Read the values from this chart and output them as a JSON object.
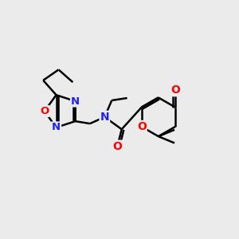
{
  "bg_color": "#ebebeb",
  "atom_colors": {
    "N": "#2020ff",
    "O": "#ff0000",
    "C": "#000000"
  },
  "bond_color": "#000000",
  "bond_width": 1.8,
  "figsize": [
    3.0,
    3.0
  ],
  "dpi": 100,
  "xlim": [
    0,
    10
  ],
  "ylim": [
    0,
    10
  ],
  "fontsize": 9.5
}
